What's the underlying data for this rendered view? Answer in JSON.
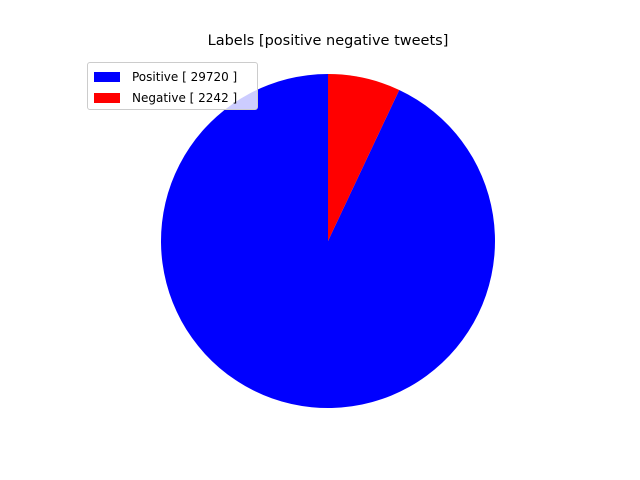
{
  "chart_data": {
    "type": "pie",
    "title": "Labels [positive negative tweets]",
    "slices": [
      {
        "label": "Positive [ 29720 ]",
        "value": 29720,
        "color": "#0000ff"
      },
      {
        "label": "Negative [ 2242 ]",
        "value": 2242,
        "color": "#ff0000"
      }
    ],
    "start_angle_deg": 90,
    "direction": "counterclockwise",
    "legend_position": "upper-left"
  }
}
